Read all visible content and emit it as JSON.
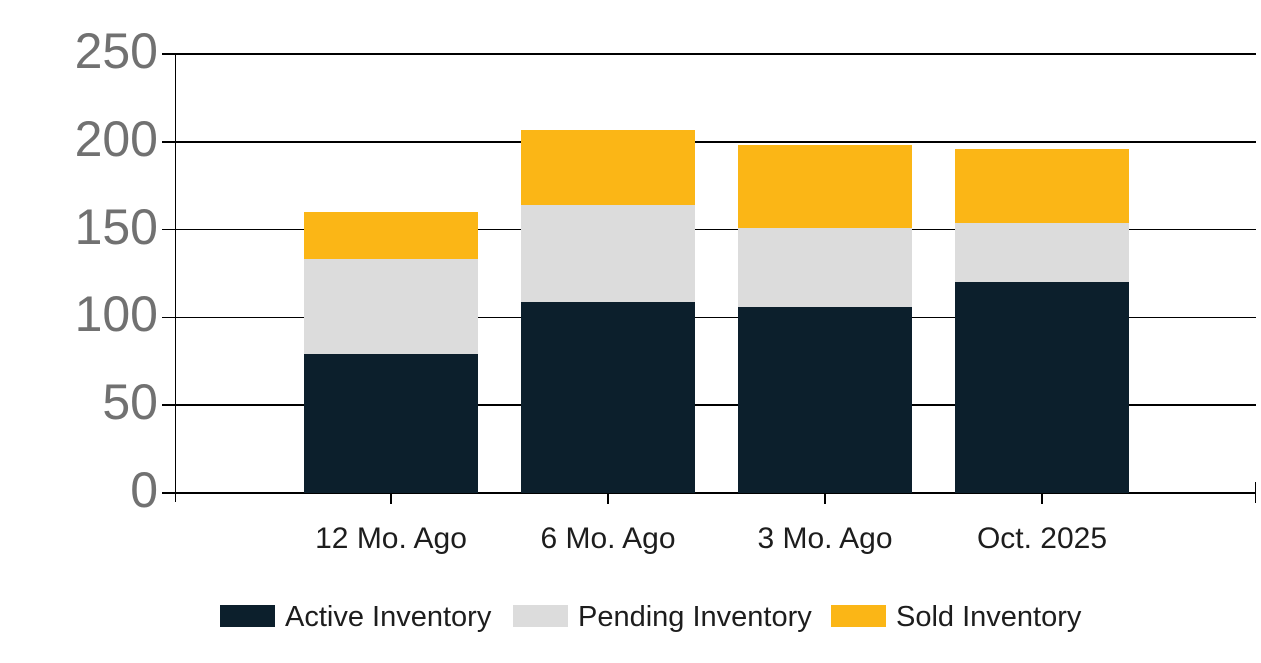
{
  "chart_data": {
    "type": "bar",
    "stacked": true,
    "title": "",
    "xlabel": "",
    "ylabel": "",
    "categories": [
      "12 Mo. Ago",
      "6 Mo. Ago",
      "3 Mo. Ago",
      "Oct. 2025"
    ],
    "series": [
      {
        "name": "Active Inventory",
        "color": "#0C1F2C",
        "values": [
          79,
          109,
          106,
          120
        ]
      },
      {
        "name": "Pending Inventory",
        "color": "#DCDCDC",
        "values": [
          54,
          55,
          45,
          34
        ]
      },
      {
        "name": "Sold Inventory",
        "color": "#FBB616",
        "values": [
          27,
          43,
          47,
          42
        ]
      }
    ],
    "totals": [
      160,
      207,
      198,
      196
    ],
    "yaxis": {
      "min": 0,
      "max": 250,
      "ticks": [
        0,
        50,
        100,
        150,
        200,
        250
      ]
    },
    "grid": true,
    "legend_position": "bottom",
    "legend": [
      "Active Inventory",
      "Pending Inventory",
      "Sold Inventory"
    ]
  },
  "colors": {
    "active": "#0C1F2C",
    "pending": "#DCDCDC",
    "sold": "#FBB616",
    "axis_line": "#000000",
    "y_tick_label": "#717171",
    "x_tick_label": "#1d1d1d",
    "background": "#ffffff"
  }
}
